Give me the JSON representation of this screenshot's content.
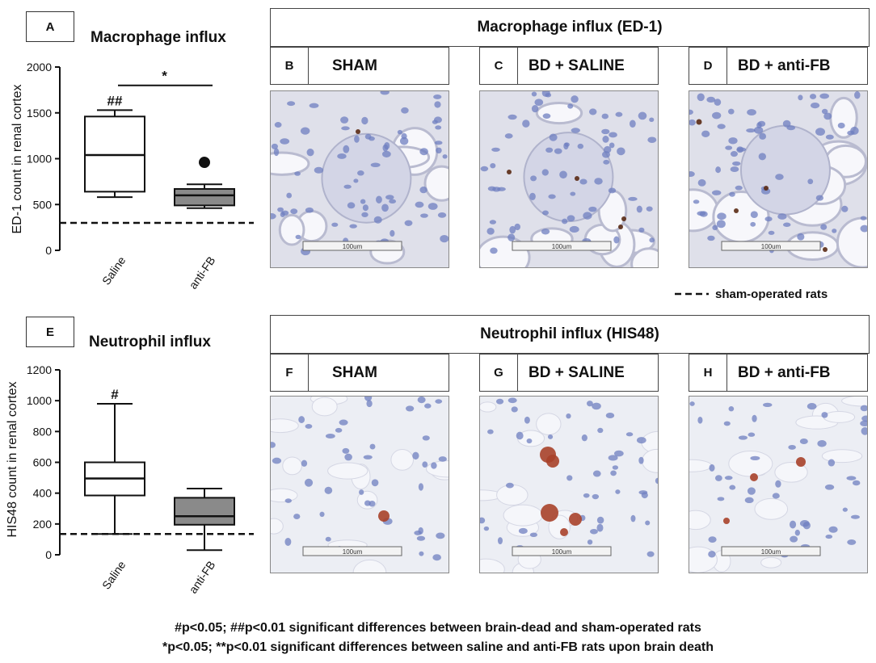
{
  "panel_a": {
    "letter": "A",
    "title": "Macrophage influx",
    "ylabel": "ED-1 count in renal cortex",
    "yticks": [
      "0",
      "500",
      "1000",
      "1500",
      "2000"
    ],
    "categories": [
      "Saline",
      "anti-FB"
    ],
    "sig_top": "##",
    "sig_bracket": "*"
  },
  "panel_e": {
    "letter": "E",
    "title": "Neutrophil influx",
    "ylabel": "HIS48 count in renal cortex",
    "yticks": [
      "0",
      "200",
      "400",
      "600",
      "800",
      "1000",
      "1200"
    ],
    "categories": [
      "Saline",
      "anti-FB"
    ],
    "sig_top": "#"
  },
  "top_row": {
    "header": "Macrophage influx (ED-1)",
    "panels": [
      {
        "letter": "B",
        "condition": "SHAM",
        "scale": "100um"
      },
      {
        "letter": "C",
        "condition": "BD + SALINE",
        "scale": "100um"
      },
      {
        "letter": "D",
        "condition": "BD + anti-FB",
        "scale": "100um"
      }
    ]
  },
  "bottom_row": {
    "header": "Neutrophil influx (HIS48)",
    "panels": [
      {
        "letter": "F",
        "condition": "SHAM",
        "scale": "100um"
      },
      {
        "letter": "G",
        "condition": "BD + SALINE",
        "scale": "100um"
      },
      {
        "letter": "H",
        "condition": "BD + anti-FB",
        "scale": "100um"
      }
    ]
  },
  "legend": {
    "label": "sham-operated rats"
  },
  "footer": {
    "line1": "#p<0.05; ##p<0.01 significant differences between brain-dead and sham-operated rats",
    "line2": "*p<0.05; **p<0.01 significant differences between saline and anti-FB rats upon brain death"
  },
  "colors": {
    "saline_box": "#ffffff",
    "antifb_box": "#8a8a8a",
    "stain_ed1": "#5a2a14",
    "stain_his48": "#a8412a",
    "nuclei": "#6f7fc0",
    "tissue_bg": "#e9eaf2"
  },
  "chart_data": [
    {
      "type": "box",
      "title": "Macrophage influx",
      "ylabel": "ED-1 count in renal cortex",
      "ylim": [
        0,
        2000
      ],
      "categories": [
        "Saline",
        "anti-FB"
      ],
      "boxes": [
        {
          "name": "Saline",
          "whisker_low": 580,
          "q1": 640,
          "median": 1040,
          "q3": 1460,
          "whisker_high": 1530,
          "outliers": []
        },
        {
          "name": "anti-FB",
          "whisker_low": 460,
          "q1": 490,
          "median": 600,
          "q3": 670,
          "whisker_high": 720,
          "outliers": [
            960
          ]
        }
      ],
      "reference_line": 300
    },
    {
      "type": "box",
      "title": "Neutrophil influx",
      "ylabel": "HIS48 count in renal cortex",
      "ylim": [
        0,
        1200
      ],
      "categories": [
        "Saline",
        "anti-FB"
      ],
      "boxes": [
        {
          "name": "Saline",
          "whisker_low": 135,
          "q1": 385,
          "median": 495,
          "q3": 600,
          "whisker_high": 980,
          "outliers": []
        },
        {
          "name": "anti-FB",
          "whisker_low": 30,
          "q1": 195,
          "median": 250,
          "q3": 370,
          "whisker_high": 430,
          "outliers": []
        }
      ],
      "reference_line": 135
    }
  ]
}
